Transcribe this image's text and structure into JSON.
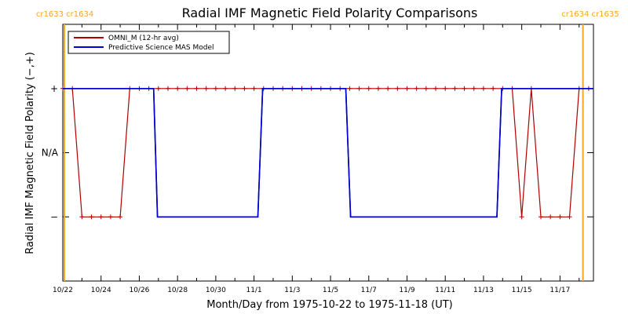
{
  "chart_data": {
    "type": "line",
    "title": "Radial IMF Magnetic Field Polarity Comparisons",
    "xlabel": "Month/Day from 1975-10-22 to 1975-11-18 (UT)",
    "ylabel": "Radial IMF Magnetic Field Polarity (−,+)",
    "xlim": [
      0,
      27.75
    ],
    "ylim": [
      -2,
      2
    ],
    "x_unit": "days since 1975-10-22 00:00 UT",
    "x_ticks": [
      {
        "x": 0,
        "label": "10/22"
      },
      {
        "x": 2,
        "label": "10/24"
      },
      {
        "x": 4,
        "label": "10/26"
      },
      {
        "x": 6,
        "label": "10/28"
      },
      {
        "x": 8,
        "label": "10/30"
      },
      {
        "x": 10,
        "label": "11/1"
      },
      {
        "x": 12,
        "label": "11/3"
      },
      {
        "x": 14,
        "label": "11/5"
      },
      {
        "x": 16,
        "label": "11/7"
      },
      {
        "x": 18,
        "label": "11/9"
      },
      {
        "x": 20,
        "label": "11/11"
      },
      {
        "x": 22,
        "label": "11/13"
      },
      {
        "x": 24,
        "label": "11/15"
      },
      {
        "x": 26,
        "label": "11/17"
      }
    ],
    "y_ticks": [
      {
        "y": 1,
        "label": "+"
      },
      {
        "y": 0,
        "label": "N/A"
      },
      {
        "y": -1,
        "label": "−"
      }
    ],
    "carrington_markers": [
      {
        "x": 0.08,
        "labels": [
          "cr1633",
          "cr1634"
        ],
        "align": "left"
      },
      {
        "x": 27.2,
        "labels": [
          "cr1634",
          "cr1635"
        ],
        "align": "right"
      }
    ],
    "legend_position": "top-left",
    "series": [
      {
        "name": "OMNI_M (12-hr avg)",
        "color": "#b00000",
        "marker": "+",
        "x": [
          0,
          0.5,
          1.0,
          1.5,
          2.0,
          2.5,
          3.0,
          3.5,
          4.0,
          4.5,
          5.0,
          5.5,
          6.0,
          6.5,
          7.0,
          7.5,
          8.0,
          8.5,
          9.0,
          9.5,
          10.0,
          10.5,
          11.0,
          11.5,
          12.0,
          12.5,
          13.0,
          13.5,
          14.0,
          14.5,
          15.0,
          15.5,
          16.0,
          16.5,
          17.0,
          17.5,
          18.0,
          18.5,
          19.0,
          19.5,
          20.0,
          20.5,
          21.0,
          21.5,
          22.0,
          22.5,
          23.0,
          23.5,
          24.0,
          24.5,
          25.0,
          25.5,
          26.0,
          26.5,
          27.0,
          27.5
        ],
        "y": [
          1,
          1,
          -1,
          -1,
          -1,
          -1,
          -1,
          1,
          1,
          1,
          1,
          1,
          1,
          1,
          1,
          1,
          1,
          1,
          1,
          1,
          1,
          1,
          1,
          1,
          1,
          1,
          1,
          1,
          1,
          1,
          1,
          1,
          1,
          1,
          1,
          1,
          1,
          1,
          1,
          1,
          1,
          1,
          1,
          1,
          1,
          1,
          1,
          1,
          -1,
          1,
          -1,
          -1,
          -1,
          -1,
          1,
          1
        ]
      },
      {
        "name": "Predictive Science MAS Model",
        "color": "#0000cc",
        "x": [
          0,
          4.75,
          4.95,
          10.2,
          10.45,
          14.8,
          15.05,
          22.7,
          22.95,
          27.75
        ],
        "y": [
          1,
          1,
          -1,
          -1,
          1,
          1,
          -1,
          -1,
          1,
          1
        ]
      }
    ],
    "colors": {
      "axis": "#000000",
      "carrington": "#f5a623"
    }
  }
}
